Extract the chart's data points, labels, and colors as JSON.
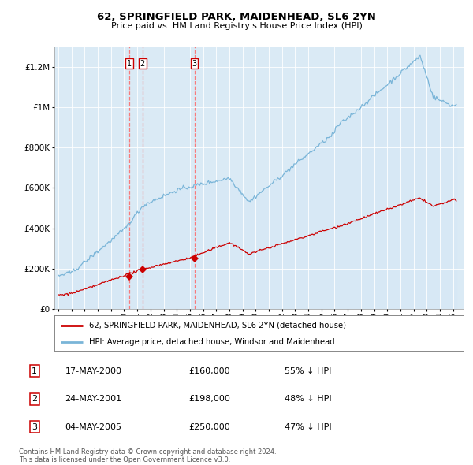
{
  "title": "62, SPRINGFIELD PARK, MAIDENHEAD, SL6 2YN",
  "subtitle": "Price paid vs. HM Land Registry's House Price Index (HPI)",
  "legend_line1": "62, SPRINGFIELD PARK, MAIDENHEAD, SL6 2YN (detached house)",
  "legend_line2": "HPI: Average price, detached house, Windsor and Maidenhead",
  "footnote1": "Contains HM Land Registry data © Crown copyright and database right 2024.",
  "footnote2": "This data is licensed under the Open Government Licence v3.0.",
  "transactions": [
    {
      "num": 1,
      "date": "17-MAY-2000",
      "price": 160000,
      "pct": "55% ↓ HPI",
      "year": 2000.38
    },
    {
      "num": 2,
      "date": "24-MAY-2001",
      "price": 198000,
      "pct": "48% ↓ HPI",
      "year": 2001.39
    },
    {
      "num": 3,
      "date": "04-MAY-2005",
      "price": 250000,
      "pct": "47% ↓ HPI",
      "year": 2005.34
    }
  ],
  "hpi_color": "#7ab5d8",
  "hpi_fill": "#d6e8f5",
  "price_color": "#cc0000",
  "dashed_color": "#ff6666",
  "marker_color": "#cc0000",
  "background_color": "#daeaf5",
  "ylim": [
    0,
    1300000
  ],
  "xlim_start": 1994.7,
  "xlim_end": 2025.8
}
